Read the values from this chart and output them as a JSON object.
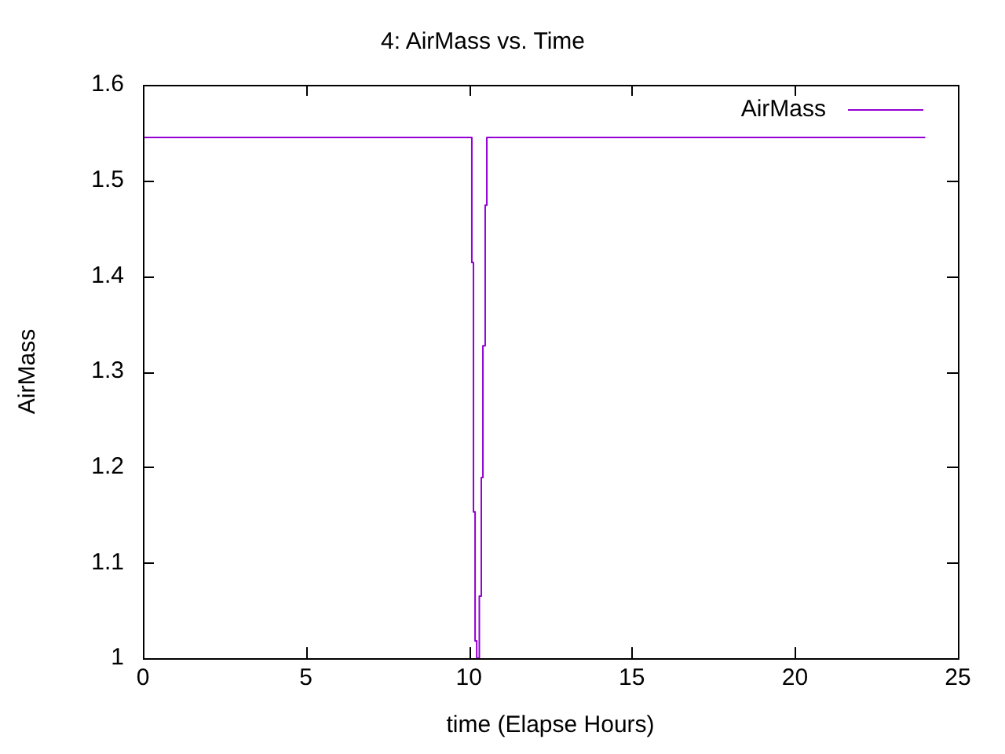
{
  "chart_data": {
    "type": "step",
    "title": "4: AirMass vs. Time",
    "xlabel": "time (Elapse Hours)",
    "ylabel": "AirMass",
    "x": [
      0,
      10.09,
      10.14,
      10.19,
      10.24,
      10.32,
      10.38,
      10.43,
      10.5,
      10.55,
      24
    ],
    "series": [
      {
        "name": "AirMass",
        "color": "#9400d3",
        "values": [
          1.545,
          1.414,
          1.153,
          1.018,
          1.0,
          1.065,
          1.189,
          1.327,
          1.474,
          1.545,
          1.545
        ]
      }
    ],
    "xlim": [
      0,
      25
    ],
    "xticks": [
      0,
      5,
      10,
      15,
      20,
      25
    ],
    "ylim": [
      1,
      1.6
    ],
    "yticks": [
      1,
      1.1,
      1.2,
      1.3,
      1.4,
      1.5,
      1.6
    ],
    "grid": false,
    "legend": "top right"
  }
}
